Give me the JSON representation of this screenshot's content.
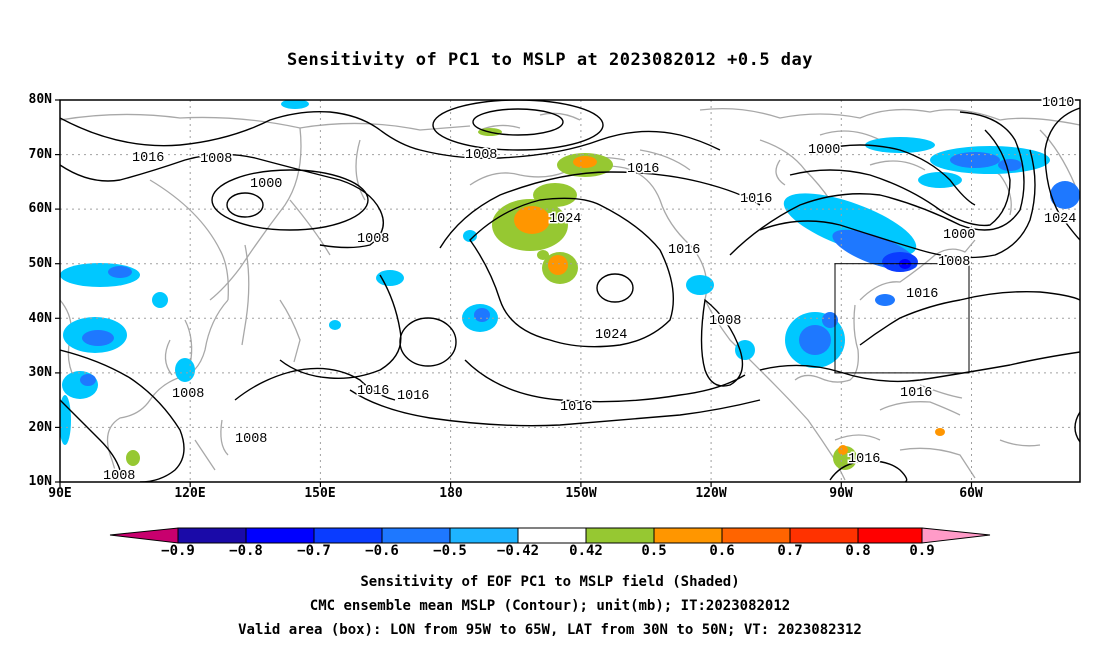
{
  "title": "Sensitivity of PC1 to MSLP at 2023082012 +0.5 day",
  "axes": {
    "lat_labels": [
      "80N",
      "70N",
      "60N",
      "50N",
      "40N",
      "30N",
      "20N",
      "10N"
    ],
    "lon_labels": [
      "90E",
      "120E",
      "150E",
      "180",
      "150W",
      "120W",
      "90W",
      "60W"
    ],
    "lon_range": [
      90,
      325
    ],
    "lat_range": [
      10,
      80
    ]
  },
  "contours": {
    "unit": "mb",
    "labels": [
      "1016",
      "1008",
      "1000",
      "1008",
      "1008",
      "1016",
      "1024",
      "1016",
      "1024",
      "1016",
      "1016",
      "1000",
      "1000",
      "1008",
      "1016",
      "1008",
      "1016",
      "1016",
      "1016",
      "1008",
      "1008",
      "1008",
      "1016",
      "1010",
      "1024"
    ]
  },
  "colorbar": {
    "labels": [
      "−0.9",
      "−0.8",
      "−0.7",
      "−0.6",
      "−0.5",
      "−0.42",
      "0.42",
      "0.5",
      "0.6",
      "0.7",
      "0.8",
      "0.9"
    ],
    "colors": [
      "#c8006e",
      "#1a0aa8",
      "#0000ff",
      "#0a3cff",
      "#1e78ff",
      "#1eb4ff",
      "#00c8ff",
      "#ffffff",
      "#96c832",
      "#ff9600",
      "#ff6400",
      "#ff3200",
      "#ff0000",
      "#ff9bc8"
    ]
  },
  "valid_box": {
    "lon": [
      -95,
      -65
    ],
    "lat": [
      30,
      50
    ]
  },
  "captions": [
    "Sensitivity of EOF PC1 to MSLP field (Shaded)",
    "CMC ensemble mean MSLP (Contour); unit(mb); IT:2023082012",
    "Valid area (box): LON from 95W to 65W, LAT from 30N to 50N; VT: 2023082312"
  ]
}
